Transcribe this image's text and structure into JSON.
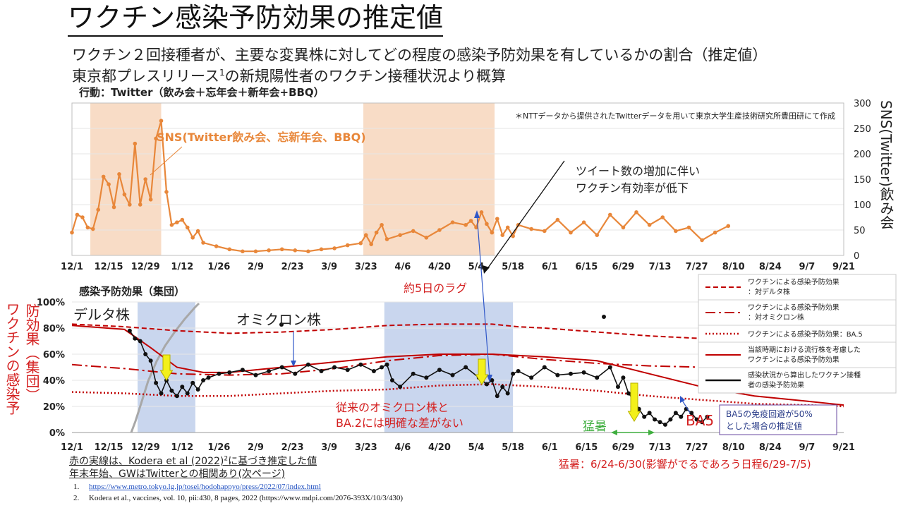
{
  "title": "ワクチン感染予防効果の推定値",
  "subtitle1": "ワクチン２回接種者が、主要な変異株に対してどの程度の感染予防効果を有しているかの割合（推定値）",
  "subtitle2_main": "東京都プレスリリース",
  "subtitle2_sup": "1",
  "subtitle2_rest": "の新規陽性者のワクチン接種状況より概算",
  "panel1_title": "行動：Twitter（飲み会＋忘年会＋新年会+BBQ）",
  "panel2_title": "感染予防効果（集団）",
  "y1_title": "SNS(Twitter)飲み会",
  "y2_title_a": "ワクチンの感染予",
  "y2_title_b": "防効果（集団）",
  "note_line1_a": "赤の実線は、Kodera et al (2022)",
  "note_line1_sup": "2",
  "note_line1_b": "に基づき推定した値",
  "note_line2": "年末年始、GWはTwitterとの相関あり(次ページ)",
  "heat_note": "猛暑：6/24-6/30(影響がでるであろう日程6/29-7/5)",
  "ref1_num": "1.",
  "ref1_url": "https://www.metro.tokyo.lg.jp/tosei/hodohappyo/press/2022/07/index.html",
  "ref2_num": "2.",
  "ref2_text": "Kodera et al., vaccines, vol. 10, pii:430, 8 pages, 2022 (https://www.mdpi.com/2076-393X/10/3/430)",
  "colors": {
    "accent_red": "#d42020",
    "twitter_orange": "#e8873a",
    "highlight_orange": "#f8dcc6",
    "highlight_blue": "#c9d6ee",
    "arrow_yellow": "#f3f01a",
    "green": "#3fae3f",
    "navy_box": "#2c3e8a"
  },
  "chart_data": [
    {
      "type": "line",
      "title": "行動：Twitter（飲み会＋忘年会＋新年会+BBQ）",
      "ylabel": "SNS(Twitter)飲み会",
      "ylim": [
        0,
        300
      ],
      "y_ticks": [
        "0",
        "50",
        "100",
        "150",
        "200",
        "250",
        "300"
      ],
      "x_ticks": [
        "12/1",
        "12/15",
        "12/29",
        "1/12",
        "1/26",
        "2/9",
        "2/23",
        "3/9",
        "3/23",
        "4/6",
        "4/20",
        "5/4",
        "5/18",
        "6/1",
        "6/15",
        "6/29",
        "7/13",
        "7/27",
        "8/10",
        "8/24",
        "9/7",
        "9/21"
      ],
      "x_range_days": [
        0,
        294
      ],
      "highlight_ranges": [
        [
          7,
          34
        ],
        [
          111,
          161
        ]
      ],
      "note": "＊NTTデータから提供されたTwitterデータを用いて東京大学生産技術研究所豊田研にて作成",
      "annotation_series": "SNS(Twitter飲み会、忘新年会、BBQ)",
      "annotation_trend": [
        "ツイート数の増加に伴い",
        "ワクチン有効率が低下"
      ],
      "annotation_lag": "約5日のラグ",
      "series": [
        {
          "name": "SNS(Twitter飲み会、忘新年会、BBQ)",
          "x": [
            0,
            2,
            4,
            6,
            8,
            10,
            12,
            14,
            16,
            18,
            20,
            22,
            24,
            26,
            28,
            30,
            32,
            34,
            36,
            38,
            40,
            42,
            44,
            46,
            48,
            50,
            55,
            60,
            65,
            70,
            75,
            80,
            85,
            90,
            95,
            100,
            105,
            110,
            112,
            114,
            116,
            118,
            120,
            125,
            130,
            135,
            140,
            145,
            150,
            152,
            154,
            156,
            158,
            160,
            162,
            164,
            166,
            168,
            170,
            175,
            180,
            185,
            190,
            195,
            200,
            205,
            210,
            215,
            220,
            225,
            230,
            235,
            240,
            245,
            250
          ],
          "y": [
            45,
            80,
            75,
            55,
            52,
            90,
            155,
            140,
            95,
            160,
            120,
            100,
            220,
            100,
            150,
            110,
            230,
            265,
            125,
            60,
            65,
            70,
            55,
            35,
            48,
            25,
            18,
            12,
            8,
            8,
            10,
            12,
            10,
            8,
            12,
            14,
            20,
            24,
            40,
            22,
            45,
            60,
            32,
            40,
            48,
            35,
            50,
            65,
            60,
            68,
            55,
            85,
            62,
            45,
            72,
            40,
            55,
            38,
            60,
            52,
            48,
            70,
            45,
            65,
            40,
            80,
            55,
            85,
            60,
            75,
            48,
            55,
            30,
            45,
            58
          ]
        }
      ]
    },
    {
      "type": "line",
      "title": "感染予防効果（集団）",
      "ylabel": "ワクチンの感染予防効果（集団）",
      "ylim": [
        0,
        100
      ],
      "y_ticks": [
        "0%",
        "20%",
        "40%",
        "60%",
        "80%",
        "100%"
      ],
      "x_ticks": [
        "12/1",
        "12/15",
        "12/29",
        "1/12",
        "1/26",
        "2/9",
        "2/23",
        "3/9",
        "3/23",
        "4/6",
        "4/20",
        "5/4",
        "5/18",
        "6/1",
        "6/15",
        "6/29",
        "7/13",
        "7/27",
        "8/10",
        "8/24",
        "9/7",
        "9/21"
      ],
      "x_range_days": [
        0,
        294
      ],
      "highlight_ranges": [
        [
          25,
          47
        ],
        [
          119,
          168
        ]
      ],
      "labels": [
        "デルタ株",
        "オミクロン株",
        "従来のオミクロン株と",
        "BA.2には明確な差がない",
        "猛暑",
        "BA5",
        "BA5の免疫回避が50%",
        "とした場合の推定値"
      ],
      "legend": {
        "placement": "right",
        "entries": [
          {
            "line1": "ワクチンによる感染予防効果",
            "line2": "：対デルタ株"
          },
          {
            "line1": "ワクチンによる感染予防効果",
            "line2": "：対オミクロン株"
          },
          {
            "line1": "ワクチンによる感染予防効果：BA.5",
            "line2": ""
          },
          {
            "line1": "当該時期における流行株を考慮した",
            "line2": "ワクチンによる感染予防効果"
          },
          {
            "line1": "感染状況から算出したワクチン接種",
            "line2": "者の感染予防効果"
          }
        ]
      },
      "series": [
        {
          "name": "ワクチンによる感染予防効果：対デルタ株",
          "x": [
            0,
            20,
            40,
            60,
            80,
            100,
            120,
            140,
            160,
            170,
            180,
            200,
            220,
            240,
            260,
            280,
            294
          ],
          "y": [
            83,
            81,
            78,
            76,
            77,
            79,
            82,
            83,
            83,
            81,
            80,
            77,
            74,
            72,
            70,
            68,
            67
          ]
        },
        {
          "name": "ワクチンによる感染予防効果：対オミクロン株",
          "x": [
            0,
            20,
            40,
            60,
            80,
            100,
            120,
            140,
            160,
            170,
            180,
            200,
            220,
            240,
            260,
            280,
            294
          ],
          "y": [
            52,
            49,
            45,
            44,
            45,
            49,
            55,
            59,
            60,
            58,
            56,
            53,
            51,
            50,
            49,
            48,
            47
          ]
        },
        {
          "name": "ワクチンによる感染予防効果：BA.5",
          "x": [
            0,
            20,
            40,
            60,
            80,
            100,
            120,
            140,
            160,
            180,
            200,
            220,
            240,
            260,
            280,
            294
          ],
          "y": [
            31,
            30,
            28,
            28,
            30,
            32,
            33,
            36,
            37,
            35,
            32,
            28,
            25,
            22,
            21,
            20
          ]
        },
        {
          "name": "当該時期における流行株を考慮したワクチン",
          "x": [
            0,
            20,
            30,
            40,
            50,
            60,
            80,
            100,
            120,
            140,
            160,
            180,
            200,
            210,
            220,
            240,
            260,
            280,
            294
          ],
          "y": [
            82,
            79,
            65,
            50,
            46,
            46,
            50,
            54,
            58,
            60,
            60,
            58,
            55,
            50,
            45,
            35,
            28,
            24,
            21
          ]
        },
        {
          "name": "感染状況から算出したワクチン接種者の感染予防効果",
          "x": [
            22,
            24,
            26,
            28,
            30,
            32,
            34,
            36,
            38,
            40,
            42,
            44,
            46,
            48,
            50,
            52,
            56,
            60,
            65,
            70,
            75,
            80,
            85,
            90,
            95,
            100,
            105,
            110,
            115,
            118,
            120,
            122,
            125,
            130,
            135,
            140,
            145,
            150,
            155,
            158,
            160,
            162,
            164,
            166,
            168,
            170,
            175,
            180,
            185,
            190,
            195,
            200,
            205,
            208,
            210,
            212,
            214,
            216,
            218,
            220,
            222,
            224,
            226,
            228,
            230,
            232,
            234,
            236,
            238,
            240,
            242
          ],
          "y": [
            78,
            72,
            70,
            60,
            55,
            38,
            30,
            40,
            32,
            28,
            35,
            30,
            38,
            33,
            40,
            42,
            45,
            46,
            48,
            44,
            47,
            50,
            45,
            52,
            47,
            50,
            48,
            52,
            47,
            50,
            52,
            40,
            35,
            45,
            42,
            48,
            44,
            50,
            42,
            37,
            40,
            28,
            35,
            30,
            45,
            47,
            42,
            50,
            44,
            45,
            46,
            42,
            50,
            35,
            42,
            30,
            25,
            18,
            12,
            15,
            10,
            8,
            6,
            10,
            15,
            12,
            18,
            15,
            10,
            8,
            12
          ]
        }
      ]
    }
  ]
}
